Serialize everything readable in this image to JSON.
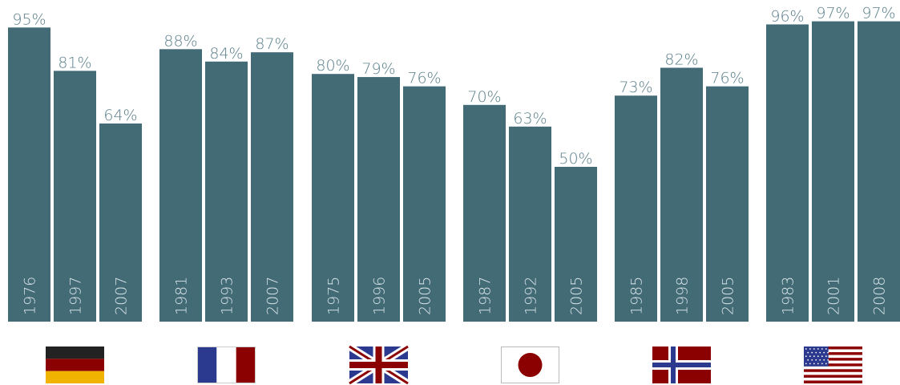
{
  "colors": {
    "bar": "#426b76",
    "value_label": "#5a7f8a",
    "year_label": "#dbe6ea",
    "flag_red": "#8b0000",
    "flag_blue": "#2b3a8e",
    "flag_black": "#222222",
    "flag_gold": "#f0b400"
  },
  "chart_data": {
    "type": "bar",
    "value_unit": "%",
    "ylim": [
      0,
      100
    ],
    "grid": false,
    "groups": [
      {
        "country_flag_icon": "germany-flag-icon",
        "bars": [
          {
            "year": "1976",
            "value": 95,
            "label": "95%"
          },
          {
            "year": "1997",
            "value": 81,
            "label": "81%"
          },
          {
            "year": "2007",
            "value": 64,
            "label": "64%"
          }
        ]
      },
      {
        "country_flag_icon": "france-flag-icon",
        "bars": [
          {
            "year": "1981",
            "value": 88,
            "label": "88%"
          },
          {
            "year": "1993",
            "value": 84,
            "label": "84%"
          },
          {
            "year": "2007",
            "value": 87,
            "label": "87%"
          }
        ]
      },
      {
        "country_flag_icon": "uk-flag-icon",
        "bars": [
          {
            "year": "1975",
            "value": 80,
            "label": "80%"
          },
          {
            "year": "1996",
            "value": 79,
            "label": "79%"
          },
          {
            "year": "2005",
            "value": 76,
            "label": "76%"
          }
        ]
      },
      {
        "country_flag_icon": "japan-flag-icon",
        "bars": [
          {
            "year": "1987",
            "value": 70,
            "label": "70%"
          },
          {
            "year": "1992",
            "value": 63,
            "label": "63%"
          },
          {
            "year": "2005",
            "value": 50,
            "label": "50%"
          }
        ]
      },
      {
        "country_flag_icon": "norway-flag-icon",
        "bars": [
          {
            "year": "1985",
            "value": 73,
            "label": "73%"
          },
          {
            "year": "1998",
            "value": 82,
            "label": "82%"
          },
          {
            "year": "2005",
            "value": 76,
            "label": "76%"
          }
        ]
      },
      {
        "country_flag_icon": "usa-flag-icon",
        "bars": [
          {
            "year": "1983",
            "value": 96,
            "label": "96%"
          },
          {
            "year": "2001",
            "value": 97,
            "label": "97%"
          },
          {
            "year": "2008",
            "value": 97,
            "label": "97%"
          }
        ]
      }
    ]
  }
}
